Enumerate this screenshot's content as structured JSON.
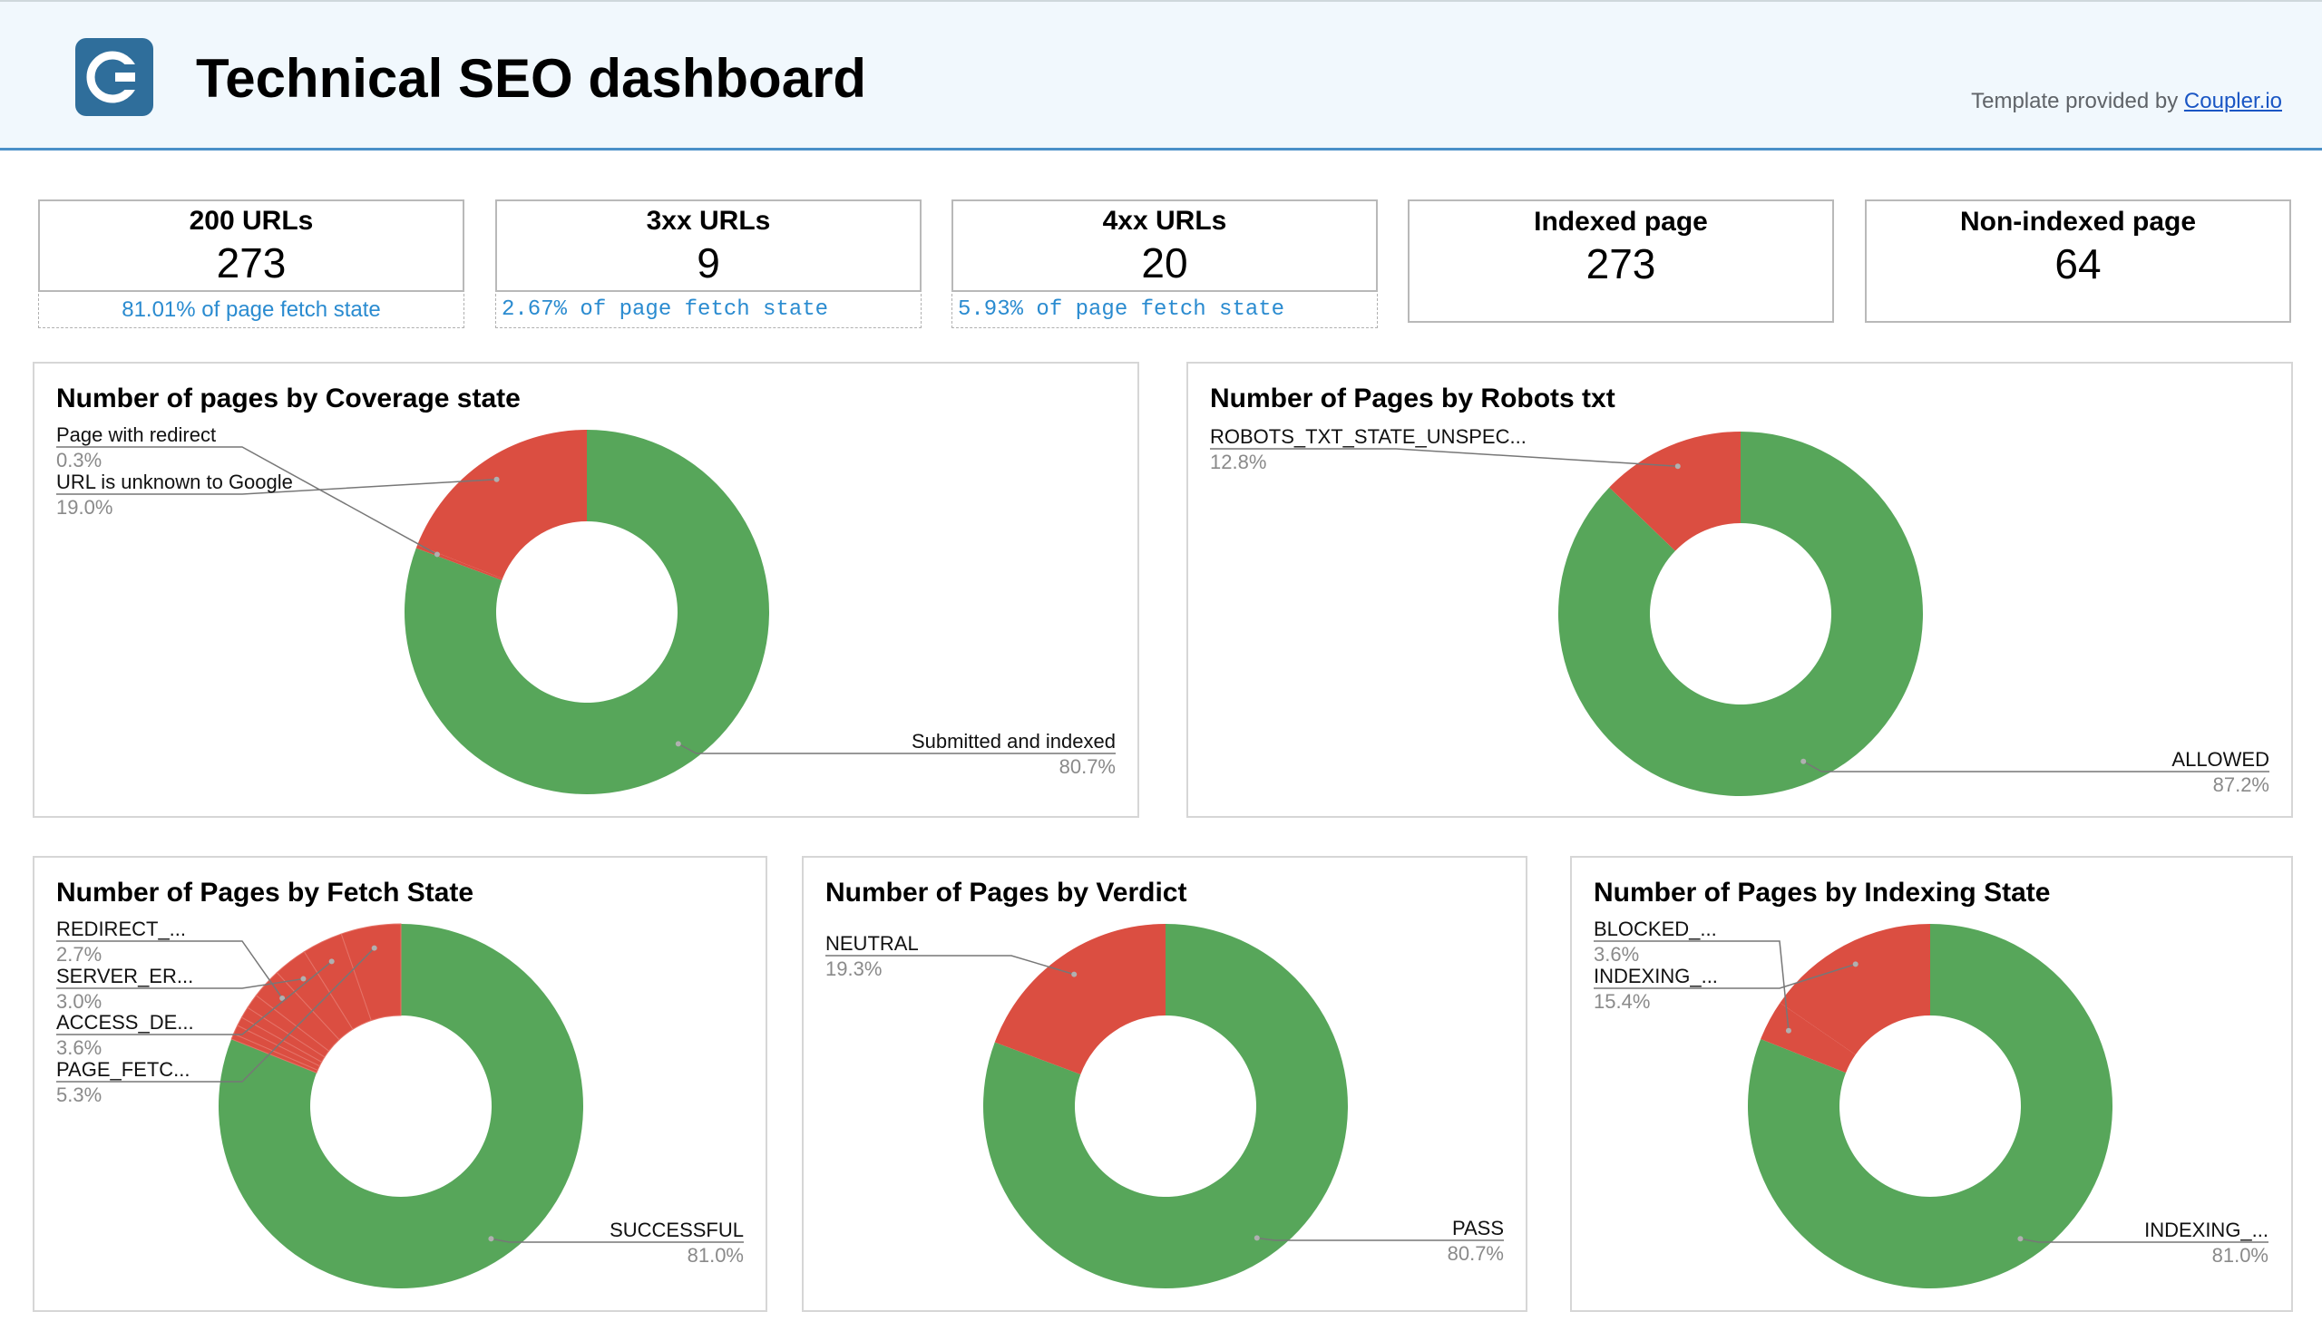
{
  "header": {
    "title": "Technical SEO dashboard",
    "credit_prefix": "Template provided by",
    "credit_link": "Coupler.io"
  },
  "kpis": [
    {
      "label": "200 URLs",
      "value": "273",
      "sub": "81.01% of page fetch state"
    },
    {
      "label": "3xx URLs",
      "value": "9",
      "sub": "2.67% of page fetch state"
    },
    {
      "label": "4xx URLs",
      "value": "20",
      "sub": "5.93% of page fetch state"
    },
    {
      "label": "Indexed page",
      "value": "273"
    },
    {
      "label": "Non-indexed page",
      "value": "64"
    }
  ],
  "colors": {
    "green": "#57a65a",
    "red": "#db4e41",
    "accent": "#4a90c8",
    "link": "#1a56c4"
  },
  "chart_data": [
    {
      "type": "pie",
      "title": "Number of pages by Coverage state",
      "donut": true,
      "slices": [
        {
          "label": "Submitted and indexed",
          "value": 80.7,
          "pct": "80.7%",
          "color": "#57a65a"
        },
        {
          "label": "Page with redirect",
          "value": 0.3,
          "pct": "0.3%",
          "color": "#db4e41"
        },
        {
          "label": "URL is unknown to Google",
          "value": 19.0,
          "pct": "19.0%",
          "color": "#db4e41"
        }
      ]
    },
    {
      "type": "pie",
      "title": "Number of Pages by Robots txt",
      "donut": true,
      "slices": [
        {
          "label": "ALLOWED",
          "value": 87.2,
          "pct": "87.2%",
          "color": "#57a65a"
        },
        {
          "label": "ROBOTS_TXT_STATE_UNSPEC...",
          "value": 12.8,
          "pct": "12.8%",
          "color": "#db4e41"
        }
      ]
    },
    {
      "type": "pie",
      "title": "Number of Pages by Fetch State",
      "donut": true,
      "slices": [
        {
          "label": "SUCCESSFUL",
          "value": 81.0,
          "pct": "81.0%",
          "color": "#57a65a"
        },
        {
          "label": "",
          "value": 0.5,
          "pct": "",
          "color": "#db4e41"
        },
        {
          "label": "",
          "value": 0.8,
          "pct": "",
          "color": "#db4e41"
        },
        {
          "label": "",
          "value": 0.8,
          "pct": "",
          "color": "#db4e41"
        },
        {
          "label": "",
          "value": 1.0,
          "pct": "",
          "color": "#db4e41"
        },
        {
          "label": "",
          "value": 1.3,
          "pct": "",
          "color": "#db4e41"
        },
        {
          "label": "REDIRECT_...",
          "value": 2.7,
          "pct": "2.7%",
          "color": "#db4e41"
        },
        {
          "label": "SERVER_ER...",
          "value": 3.0,
          "pct": "3.0%",
          "color": "#db4e41"
        },
        {
          "label": "ACCESS_DE...",
          "value": 3.6,
          "pct": "3.6%",
          "color": "#db4e41"
        },
        {
          "label": "PAGE_FETC...",
          "value": 5.3,
          "pct": "5.3%",
          "color": "#db4e41"
        }
      ]
    },
    {
      "type": "pie",
      "title": "Number of Pages by Verdict",
      "donut": true,
      "slices": [
        {
          "label": "PASS",
          "value": 80.7,
          "pct": "80.7%",
          "color": "#57a65a"
        },
        {
          "label": "NEUTRAL",
          "value": 19.3,
          "pct": "19.3%",
          "color": "#db4e41"
        }
      ]
    },
    {
      "type": "pie",
      "title": "Number of Pages by Indexing State",
      "donut": true,
      "slices": [
        {
          "label": "INDEXING_...",
          "value": 81.0,
          "pct": "81.0%",
          "color": "#57a65a"
        },
        {
          "label": "BLOCKED_...",
          "value": 3.6,
          "pct": "3.6%",
          "color": "#db4e41"
        },
        {
          "label": "INDEXING_...",
          "value": 15.4,
          "pct": "15.4%",
          "color": "#db4e41"
        }
      ]
    }
  ]
}
